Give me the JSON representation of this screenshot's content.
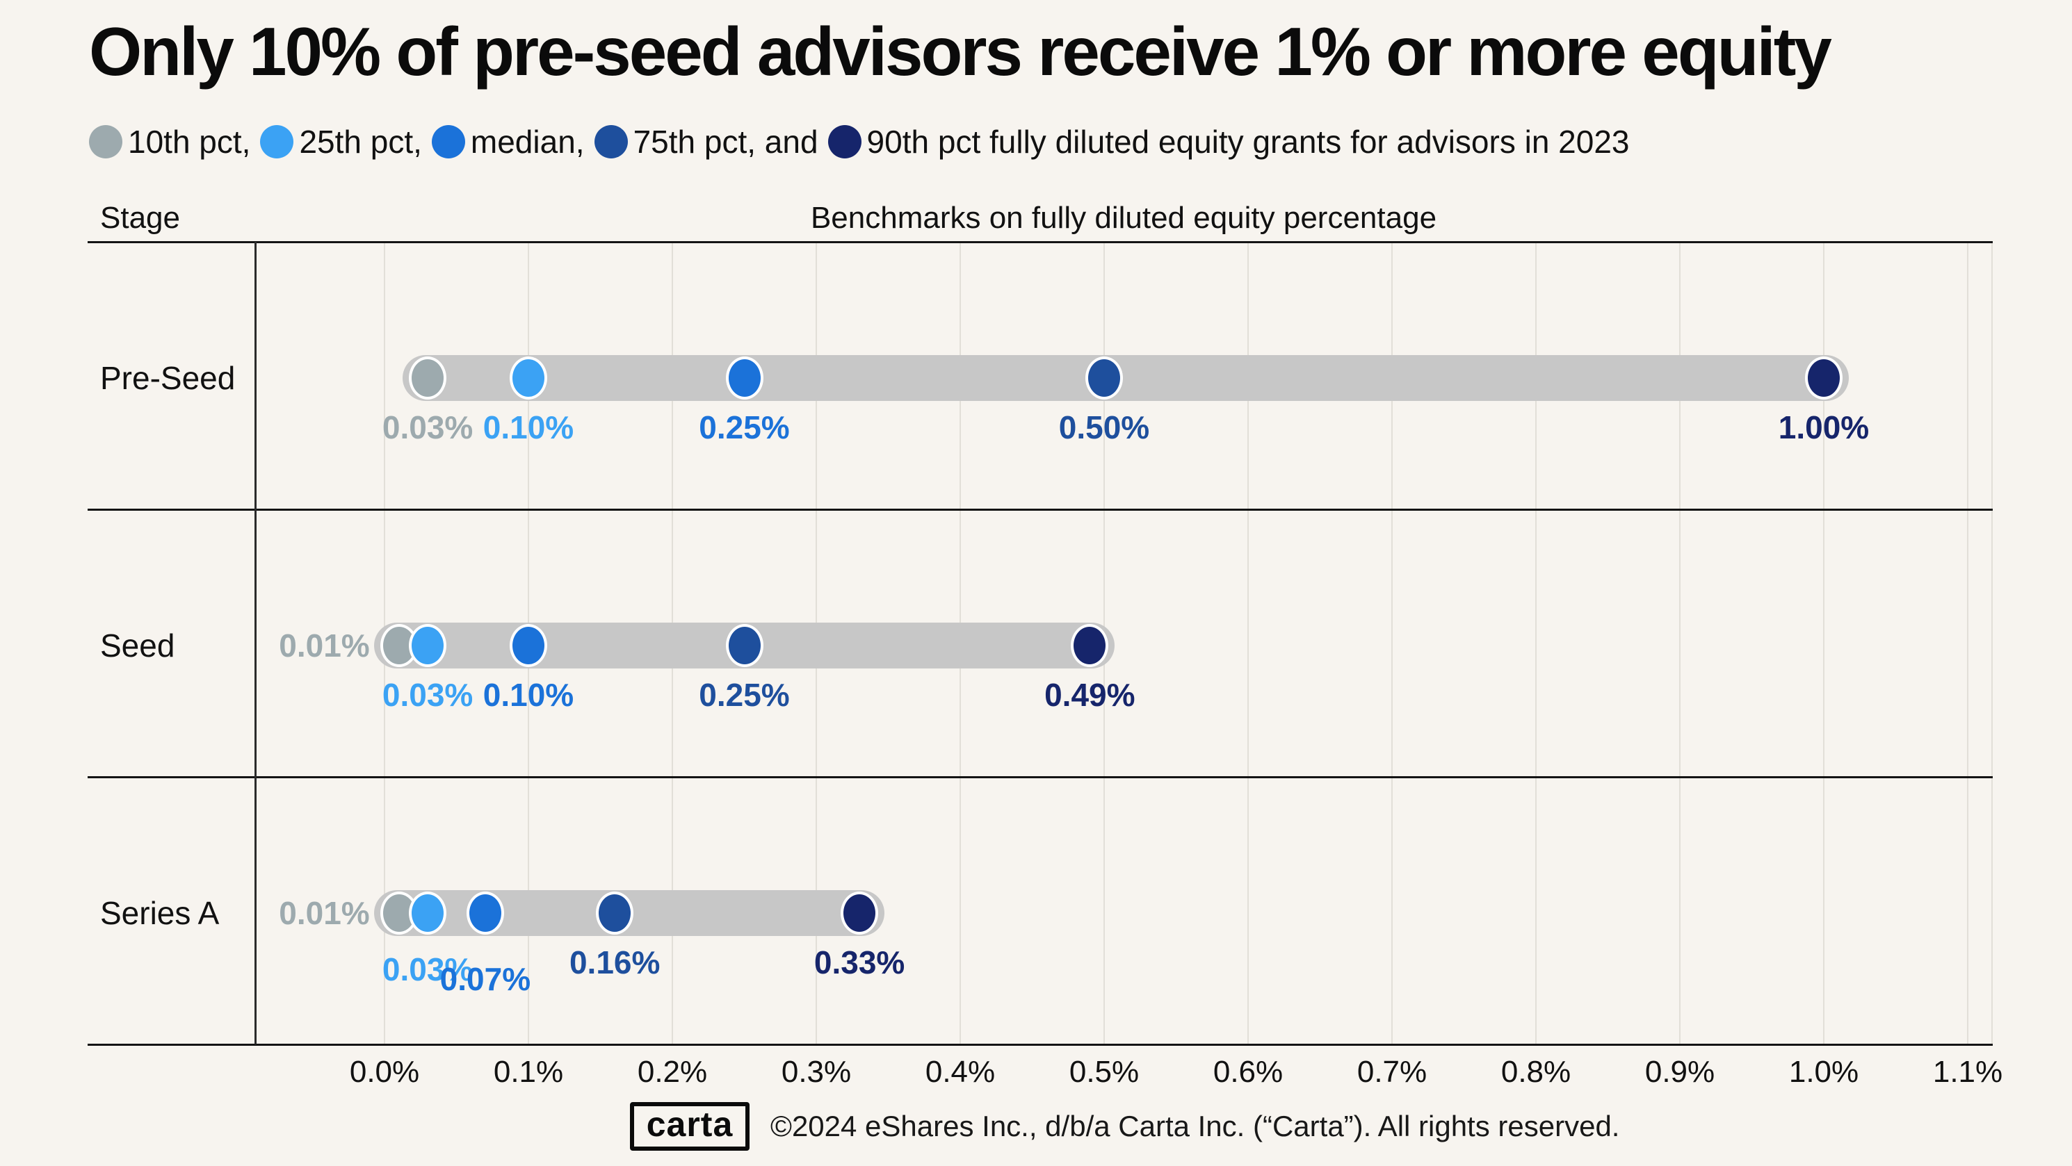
{
  "page": {
    "title": "Only 10% of pre-seed advisors receive 1% or more equity",
    "background_color": "#F7F4EF"
  },
  "legend": {
    "items": [
      {
        "name": "10th pct",
        "label": "10th pct,",
        "color": "#9DAAAE"
      },
      {
        "name": "25th pct",
        "label": "25th pct,",
        "color": "#3BA2F4"
      },
      {
        "name": "median",
        "label": "median,",
        "color": "#1B72D9"
      },
      {
        "name": "75th pct",
        "label": "75th pct, and",
        "color": "#1E4F9D"
      },
      {
        "name": "90th pct",
        "label": "90th pct fully diluted equity grants for advisors in 2023",
        "color": "#16256B"
      }
    ]
  },
  "table_headers": {
    "left": "Stage",
    "right": "Benchmarks on fully diluted equity percentage"
  },
  "chart_data": {
    "type": "dot-plot",
    "title": "Only 10% of pre-seed advisors receive 1% or more equity",
    "subtitle": "10th pct, 25th pct, median, 75th pct, and 90th pct fully diluted equity grants for advisors in 2023",
    "categories": [
      "Pre-Seed",
      "Seed",
      "Series A"
    ],
    "series": [
      {
        "name": "10th pct",
        "color": "#9DAAAE",
        "values": [
          0.03,
          0.01,
          0.01
        ]
      },
      {
        "name": "25th pct",
        "color": "#3BA2F4",
        "values": [
          0.1,
          0.03,
          0.03
        ]
      },
      {
        "name": "median",
        "color": "#1B72D9",
        "values": [
          0.25,
          0.1,
          0.07
        ]
      },
      {
        "name": "75th pct",
        "color": "#1E4F9D",
        "values": [
          0.5,
          0.25,
          0.16
        ]
      },
      {
        "name": "90th pct",
        "color": "#16256B",
        "values": [
          1.0,
          0.49,
          0.33
        ]
      }
    ],
    "point_labels": [
      [
        "0.03%",
        "0.10%",
        "0.25%",
        "0.50%",
        "1.00%"
      ],
      [
        "0.01%",
        "0.03%",
        "0.10%",
        "0.25%",
        "0.49%"
      ],
      [
        "0.01%",
        "0.03%",
        "0.07%",
        "0.16%",
        "0.33%"
      ]
    ],
    "label_outside_left": [
      [
        false,
        false,
        false,
        false,
        false
      ],
      [
        true,
        false,
        false,
        false,
        false
      ],
      [
        true,
        false,
        false,
        false,
        false
      ]
    ],
    "label_dy": [
      [
        0,
        0,
        0,
        0,
        0
      ],
      [
        0,
        0,
        0,
        0,
        0
      ],
      [
        0,
        10,
        24,
        0,
        0
      ]
    ],
    "x_axis": {
      "min": 0,
      "max": 1.1,
      "unit": "%",
      "ticks": [
        "0.0%",
        "0.1%",
        "0.2%",
        "0.3%",
        "0.4%",
        "0.5%",
        "0.6%",
        "0.7%",
        "0.8%",
        "0.9%",
        "1.0%",
        "1.1%"
      ]
    },
    "bar_color": "#C7C7C7",
    "grid": true,
    "legend_position": "top"
  },
  "footer": {
    "logo_text": "carta",
    "copyright": "©2024 eShares Inc., d/b/a Carta Inc. (“Carta”). All rights reserved."
  }
}
